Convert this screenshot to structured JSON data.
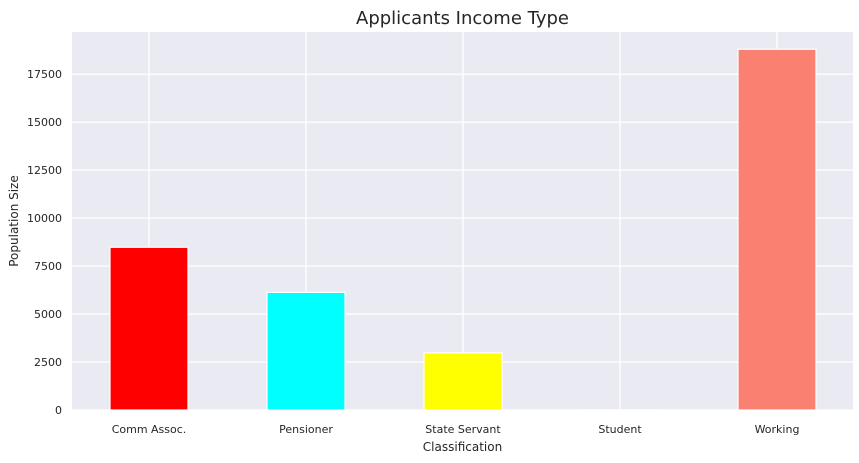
{
  "chart_data": {
    "type": "bar",
    "title": "Applicants Income Type",
    "xlabel": "Classification",
    "ylabel": "Population Size",
    "categories": [
      "Comm Assoc.",
      "Pensioner",
      "State Servant",
      "Student",
      "Working"
    ],
    "values": [
      8480,
      6130,
      2980,
      5,
      18800
    ],
    "bar_colors": [
      "#ff0000",
      "#00ffff",
      "#ffff00",
      "#0000ff",
      "#fa8072"
    ],
    "ylim": [
      0,
      19700
    ],
    "yticks": [
      0,
      2500,
      5000,
      7500,
      10000,
      12500,
      15000,
      17500
    ],
    "grid": true,
    "background_color": "#eaeaf2",
    "grid_color": "#ffffff"
  }
}
